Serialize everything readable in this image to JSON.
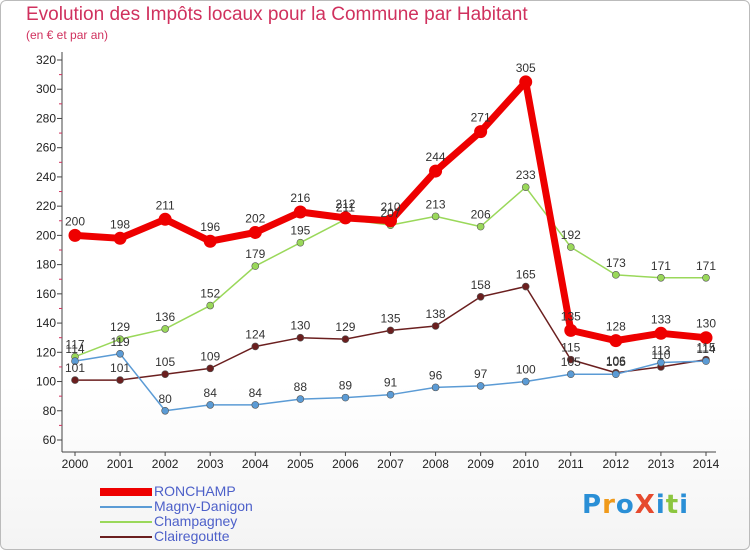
{
  "header": {
    "title": "Evolution des Impôts locaux pour la Commune par Habitant",
    "subtitle": "(en € et par an)"
  },
  "logo": {
    "text": "ProXiti",
    "colors": [
      "#2a8fd6",
      "#f09a1a",
      "#2a8fd6",
      "#e64a2e",
      "#2a8fd6",
      "#8cc63f",
      "#2a8fd6"
    ]
  },
  "chart_data": {
    "type": "line",
    "title": "Evolution des Impôts locaux pour la Commune par Habitant",
    "subtitle": "(en € et par an)",
    "x": [
      "2000",
      "2001",
      "2002",
      "2003",
      "2004",
      "2005",
      "2006",
      "2007",
      "2008",
      "2009",
      "2010",
      "2011",
      "2012",
      "2013",
      "2014"
    ],
    "ylim": [
      60,
      320
    ],
    "yticks": [
      60,
      80,
      100,
      120,
      140,
      160,
      180,
      200,
      220,
      240,
      260,
      280,
      300,
      320
    ],
    "grid": false,
    "legend": "bottom-left",
    "series": [
      {
        "name": "RONCHAMP",
        "color": "#ee0000",
        "values": [
          200,
          198,
          211,
          196,
          202,
          216,
          212,
          210,
          244,
          271,
          305,
          135,
          128,
          133,
          130
        ]
      },
      {
        "name": "Magny-Danigon",
        "color": "#5b9bd5",
        "values": [
          114,
          119,
          80,
          84,
          84,
          88,
          89,
          91,
          96,
          97,
          100,
          105,
          105,
          113,
          114
        ]
      },
      {
        "name": "Champagney",
        "color": "#9ad85a",
        "values": [
          117,
          129,
          136,
          152,
          179,
          195,
          211,
          207,
          213,
          206,
          233,
          192,
          173,
          171,
          171
        ]
      },
      {
        "name": "Clairegoutte",
        "color": "#6b1f1f",
        "values": [
          101,
          101,
          105,
          109,
          124,
          130,
          129,
          135,
          138,
          158,
          165,
          115,
          106,
          110,
          115
        ]
      }
    ]
  }
}
